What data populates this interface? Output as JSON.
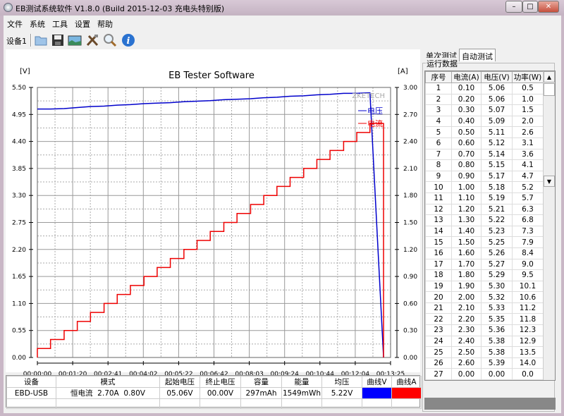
{
  "window": {
    "title": "EB测试系统软件 V1.8.0 (Build 2015-12-03 充电头特别版)",
    "minimize": "–",
    "maximize": "□",
    "close": "✕"
  },
  "menu": [
    "文件",
    "系统",
    "工具",
    "设置",
    "帮助"
  ],
  "toolbar": {
    "device_label": "设备1",
    "icons": [
      "folder-open-icon",
      "save-icon",
      "image-icon",
      "tools-icon",
      "search-icon",
      "info-icon"
    ]
  },
  "chart_data": {
    "type": "line",
    "title": "EB Tester Software",
    "left_unit": "[V]",
    "right_unit": "[A]",
    "watermark": "ZKETECH",
    "grid": true,
    "legend_placement": "top-right",
    "ylim_left": [
      0,
      5.5
    ],
    "ylim_right": [
      0,
      3.0
    ],
    "xlim": [
      "00:00:00",
      "00:13:25"
    ],
    "x_ticks": [
      "00:00:00",
      "00:01:20",
      "00:02:41",
      "00:04:02",
      "00:05:22",
      "00:06:42",
      "00:08:03",
      "00:09:24",
      "00:10:44",
      "00:12:04",
      "00:13:25"
    ],
    "y_ticks_left": [
      "0.00",
      "0.55",
      "1.10",
      "1.65",
      "2.20",
      "2.75",
      "3.30",
      "3.85",
      "4.40",
      "4.95",
      "5.50"
    ],
    "y_ticks_right": [
      "0.00",
      "0.30",
      "0.60",
      "0.90",
      "1.20",
      "1.50",
      "1.80",
      "2.10",
      "2.40",
      "2.70",
      "3.00"
    ],
    "x": [
      "00:00:00",
      "00:00:30",
      "00:01:01",
      "00:01:31",
      "00:02:01",
      "00:02:32",
      "00:03:02",
      "00:03:32",
      "00:04:03",
      "00:04:33",
      "00:05:03",
      "00:05:34",
      "00:06:04",
      "00:06:34",
      "00:07:05",
      "00:07:35",
      "00:08:06",
      "00:08:36",
      "00:09:06",
      "00:09:36",
      "00:10:07",
      "00:10:37",
      "00:11:07",
      "00:11:38",
      "00:12:08",
      "00:12:38",
      "00:13:09"
    ],
    "series": [
      {
        "name": "电压",
        "axis": "left",
        "color": "#0000cc",
        "values": [
          5.06,
          5.06,
          5.07,
          5.09,
          5.11,
          5.12,
          5.14,
          5.15,
          5.17,
          5.18,
          5.19,
          5.21,
          5.22,
          5.23,
          5.25,
          5.26,
          5.27,
          5.29,
          5.3,
          5.32,
          5.33,
          5.35,
          5.36,
          5.38,
          5.38,
          5.39,
          0.0
        ]
      },
      {
        "name": "电流",
        "axis": "right",
        "color": "#ee0000",
        "values": [
          0.1,
          0.2,
          0.3,
          0.4,
          0.5,
          0.6,
          0.7,
          0.8,
          0.9,
          1.0,
          1.1,
          1.2,
          1.3,
          1.4,
          1.5,
          1.6,
          1.7,
          1.8,
          1.9,
          2.0,
          2.1,
          2.2,
          2.3,
          2.4,
          2.5,
          2.6,
          0.0
        ]
      }
    ]
  },
  "summary": {
    "headers": [
      "设备",
      "模式",
      "起始电压",
      "终止电压",
      "容量",
      "能量",
      "均压",
      "曲线V",
      "曲线A"
    ],
    "row": {
      "device": "EBD-USB",
      "mode": "恒电流  2.70A  0.80V",
      "start_v": "05.06V",
      "end_v": "00.00V",
      "capacity": "297mAh",
      "energy": "1549mWh",
      "avg_v": "5.22V"
    },
    "curve_v_color": "#0000ff",
    "curve_a_color": "#ff0000"
  },
  "right_panel": {
    "tabs": [
      "单次测试",
      "自动测试"
    ],
    "active_tab": "自动测试",
    "group_title": "运行数据",
    "headers": [
      "序号",
      "电流(A)",
      "电压(V)",
      "功率(W)"
    ],
    "rows": [
      [
        "1",
        "0.10",
        "5.06",
        "0.5"
      ],
      [
        "2",
        "0.20",
        "5.06",
        "1.0"
      ],
      [
        "3",
        "0.30",
        "5.07",
        "1.5"
      ],
      [
        "4",
        "0.40",
        "5.09",
        "2.0"
      ],
      [
        "5",
        "0.50",
        "5.11",
        "2.6"
      ],
      [
        "6",
        "0.60",
        "5.12",
        "3.1"
      ],
      [
        "7",
        "0.70",
        "5.14",
        "3.6"
      ],
      [
        "8",
        "0.80",
        "5.15",
        "4.1"
      ],
      [
        "9",
        "0.90",
        "5.17",
        "4.7"
      ],
      [
        "10",
        "1.00",
        "5.18",
        "5.2"
      ],
      [
        "11",
        "1.10",
        "5.19",
        "5.7"
      ],
      [
        "12",
        "1.20",
        "5.21",
        "6.3"
      ],
      [
        "13",
        "1.30",
        "5.22",
        "6.8"
      ],
      [
        "14",
        "1.40",
        "5.23",
        "7.3"
      ],
      [
        "15",
        "1.50",
        "5.25",
        "7.9"
      ],
      [
        "16",
        "1.60",
        "5.26",
        "8.4"
      ],
      [
        "17",
        "1.70",
        "5.27",
        "9.0"
      ],
      [
        "18",
        "1.80",
        "5.29",
        "9.5"
      ],
      [
        "19",
        "1.90",
        "5.30",
        "10.1"
      ],
      [
        "20",
        "2.00",
        "5.32",
        "10.6"
      ],
      [
        "21",
        "2.10",
        "5.33",
        "11.2"
      ],
      [
        "22",
        "2.20",
        "5.35",
        "11.8"
      ],
      [
        "23",
        "2.30",
        "5.36",
        "12.3"
      ],
      [
        "24",
        "2.40",
        "5.38",
        "12.9"
      ],
      [
        "25",
        "2.50",
        "5.38",
        "13.5"
      ],
      [
        "26",
        "2.60",
        "5.39",
        "14.0"
      ],
      [
        "27",
        "0.00",
        "0.00",
        "0.0"
      ]
    ]
  }
}
